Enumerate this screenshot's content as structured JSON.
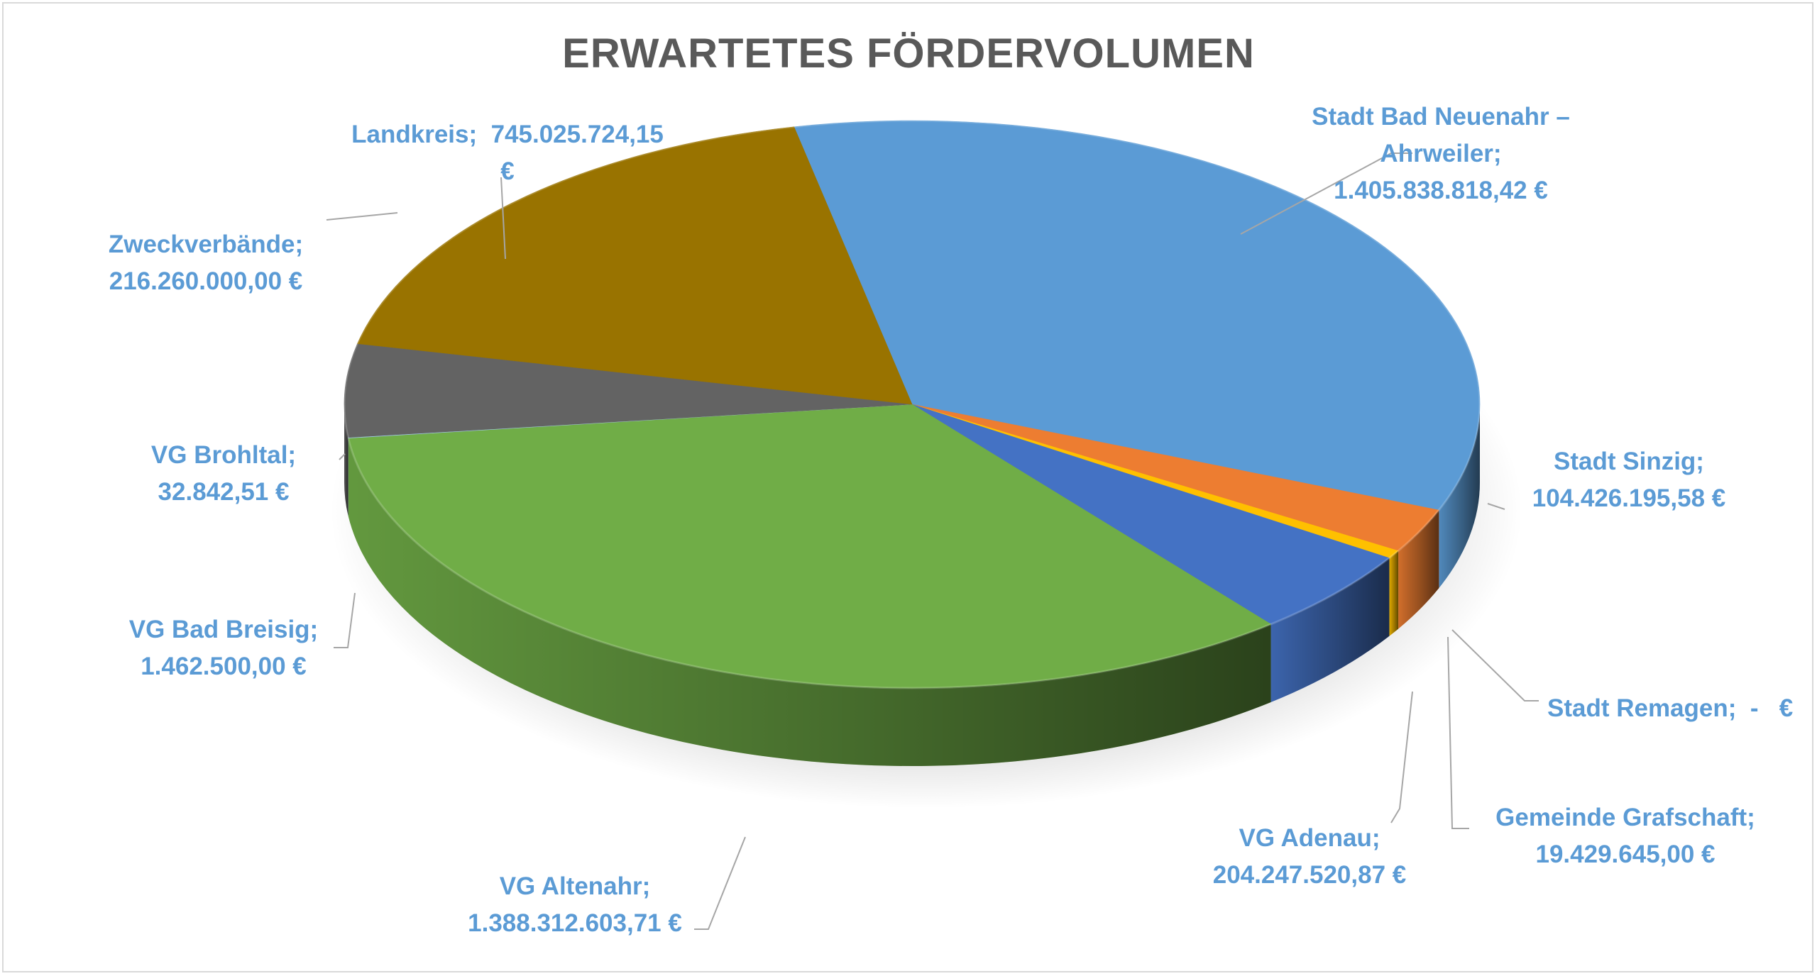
{
  "chart_data": {
    "type": "pie",
    "title": "ERWARTETES FÖRDERVOLUMEN",
    "style": "3d-pie",
    "colors": {
      "label": "#5b9bd5",
      "title": "#595959",
      "leader": "#a6a6a6",
      "border": "#d9d9d9"
    },
    "series": [
      {
        "label_lines": [
          "Stadt Bad Neuenahr –",
          "Ahrweiler;",
          "1.405.838.818,42 €"
        ],
        "value": 1405838818.42,
        "color": "#5b9bd5"
      },
      {
        "label_lines": [
          "Stadt Sinzig;",
          "104.426.195,58 €"
        ],
        "value": 104426195.58,
        "color": "#ed7d31"
      },
      {
        "label_lines": [
          "Stadt Remagen;  -   €"
        ],
        "value": 0,
        "color": "#a5a5a5"
      },
      {
        "label_lines": [
          "Gemeinde Grafschaft;",
          "19.429.645,00 €"
        ],
        "value": 19429645.0,
        "color": "#ffc000"
      },
      {
        "label_lines": [
          "VG Adenau;",
          "204.247.520,87 €"
        ],
        "value": 204247520.87,
        "color": "#4472c4"
      },
      {
        "label_lines": [
          "VG Altenahr;",
          "1.388.312.603,71 €"
        ],
        "value": 1388312603.71,
        "color": "#70ad47"
      },
      {
        "label_lines": [
          "VG Bad Breisig;",
          "1.462.500,00 €"
        ],
        "value": 1462500.0,
        "color": "#9dc3e6"
      },
      {
        "label_lines": [
          "VG Brohltal;",
          "32.842,51 €"
        ],
        "value": 32842.51,
        "color": "#a9d18e"
      },
      {
        "label_lines": [
          "Zweckverbände;",
          "216.260.000,00 €"
        ],
        "value": 216260000.0,
        "color": "#636363"
      },
      {
        "label_lines": [
          "Landkreis;  745.025.724,15",
          "€"
        ],
        "value": 745025724.15,
        "color": "#997300"
      }
    ]
  }
}
